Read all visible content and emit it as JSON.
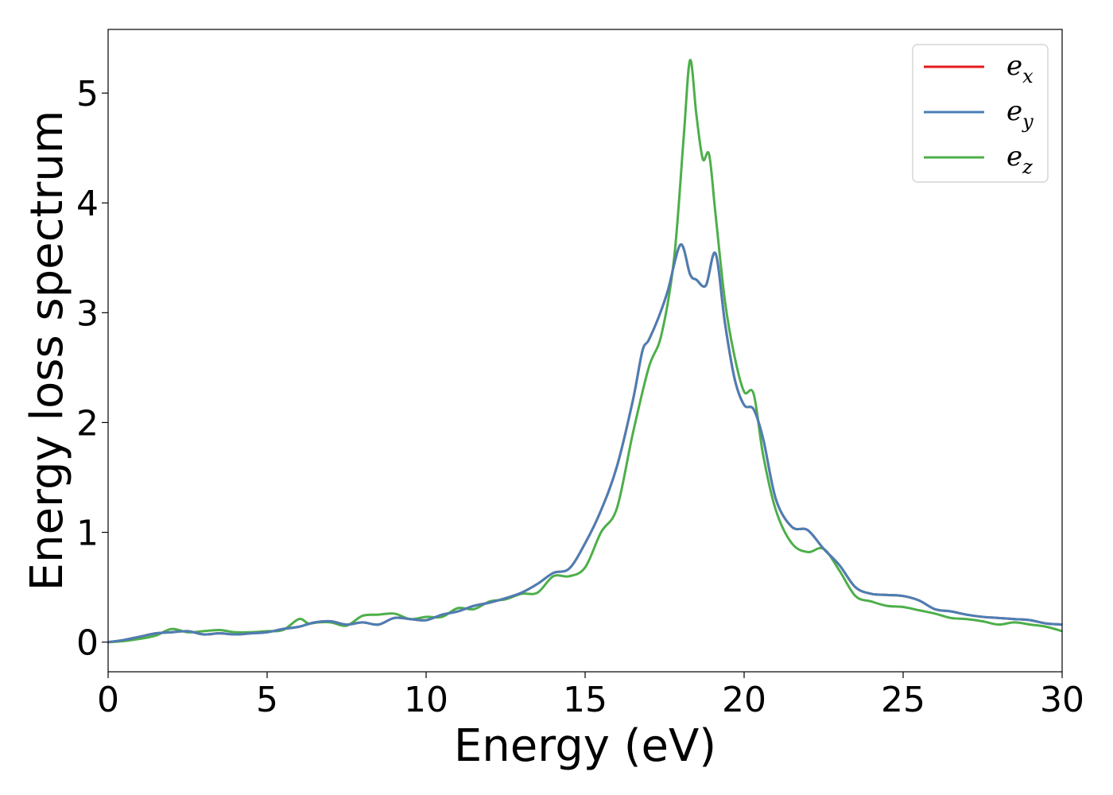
{
  "chart_data": {
    "type": "line",
    "title": "",
    "xlabel": "Energy (eV)",
    "ylabel": "Energy loss spectrum",
    "xlim": [
      0,
      30
    ],
    "ylim": [
      -0.27,
      5.58
    ],
    "xticks": [
      "0",
      "5",
      "10",
      "15",
      "20",
      "25",
      "30"
    ],
    "yticks": [
      "0",
      "1",
      "2",
      "3",
      "4",
      "5"
    ],
    "grid": false,
    "legend_position": "top-right",
    "series": [
      {
        "name_base": "e",
        "name_sub": "x",
        "color": "#e41a1c",
        "x": [
          0,
          0.5,
          1,
          1.5,
          2,
          2.5,
          3,
          3.5,
          4,
          4.5,
          5,
          5.5,
          6,
          6.5,
          7,
          7.5,
          8,
          8.5,
          9,
          9.5,
          10,
          10.5,
          11,
          11.5,
          12,
          12.5,
          13,
          13.5,
          14,
          14.5,
          15,
          15.5,
          16,
          16.5,
          16.8,
          17,
          17.3,
          17.6,
          18,
          18.3,
          18.5,
          18.8,
          19.1,
          19.4,
          19.7,
          20,
          20.3,
          20.6,
          21,
          21.5,
          22,
          22.5,
          23,
          23.5,
          24,
          24.5,
          25,
          25.5,
          26,
          26.5,
          27,
          27.5,
          28,
          28.5,
          29,
          29.5,
          30
        ],
        "y": [
          0,
          0.02,
          0.05,
          0.08,
          0.09,
          0.1,
          0.07,
          0.08,
          0.07,
          0.08,
          0.09,
          0.12,
          0.14,
          0.18,
          0.19,
          0.16,
          0.18,
          0.16,
          0.22,
          0.21,
          0.2,
          0.25,
          0.28,
          0.33,
          0.36,
          0.4,
          0.45,
          0.53,
          0.63,
          0.67,
          0.9,
          1.2,
          1.6,
          2.2,
          2.65,
          2.75,
          2.95,
          3.2,
          3.62,
          3.35,
          3.3,
          3.25,
          3.54,
          2.9,
          2.4,
          2.16,
          2.12,
          1.85,
          1.3,
          1.05,
          1.02,
          0.85,
          0.7,
          0.5,
          0.44,
          0.43,
          0.42,
          0.38,
          0.3,
          0.28,
          0.25,
          0.23,
          0.22,
          0.21,
          0.2,
          0.17,
          0.16
        ]
      },
      {
        "name_base": "e",
        "name_sub": "y",
        "color": "#4a7fb5",
        "x": [
          0,
          0.5,
          1,
          1.5,
          2,
          2.5,
          3,
          3.5,
          4,
          4.5,
          5,
          5.5,
          6,
          6.5,
          7,
          7.5,
          8,
          8.5,
          9,
          9.5,
          10,
          10.5,
          11,
          11.5,
          12,
          12.5,
          13,
          13.5,
          14,
          14.5,
          15,
          15.5,
          16,
          16.5,
          16.8,
          17,
          17.3,
          17.6,
          18,
          18.3,
          18.5,
          18.8,
          19.1,
          19.4,
          19.7,
          20,
          20.3,
          20.6,
          21,
          21.5,
          22,
          22.5,
          23,
          23.5,
          24,
          24.5,
          25,
          25.5,
          26,
          26.5,
          27,
          27.5,
          28,
          28.5,
          29,
          29.5,
          30
        ],
        "y": [
          0,
          0.02,
          0.05,
          0.08,
          0.09,
          0.1,
          0.07,
          0.08,
          0.07,
          0.08,
          0.09,
          0.12,
          0.14,
          0.18,
          0.19,
          0.16,
          0.18,
          0.16,
          0.22,
          0.21,
          0.2,
          0.25,
          0.28,
          0.33,
          0.36,
          0.4,
          0.45,
          0.53,
          0.63,
          0.67,
          0.9,
          1.2,
          1.6,
          2.2,
          2.65,
          2.75,
          2.95,
          3.2,
          3.62,
          3.35,
          3.3,
          3.25,
          3.54,
          2.9,
          2.4,
          2.16,
          2.12,
          1.85,
          1.3,
          1.05,
          1.02,
          0.85,
          0.7,
          0.5,
          0.44,
          0.43,
          0.42,
          0.38,
          0.3,
          0.28,
          0.25,
          0.23,
          0.22,
          0.21,
          0.2,
          0.17,
          0.16
        ]
      },
      {
        "name_base": "e",
        "name_sub": "z",
        "color": "#4daf4a",
        "x": [
          0,
          0.5,
          1,
          1.5,
          2,
          2.5,
          3,
          3.5,
          4,
          4.5,
          5,
          5.5,
          6,
          6.3,
          6.6,
          7,
          7.5,
          8,
          8.5,
          9,
          9.5,
          10,
          10.5,
          11,
          11.5,
          12,
          12.5,
          13,
          13.5,
          14,
          14.5,
          15,
          15.5,
          16,
          16.5,
          17,
          17.4,
          17.8,
          18.1,
          18.3,
          18.5,
          18.7,
          18.9,
          19.1,
          19.4,
          19.7,
          20,
          20.3,
          20.6,
          21,
          21.5,
          22,
          22.5,
          23,
          23.5,
          24,
          24.5,
          25,
          25.5,
          26,
          26.5,
          27,
          27.5,
          28,
          28.5,
          29,
          29.5,
          30
        ],
        "y": [
          0,
          0.01,
          0.03,
          0.06,
          0.12,
          0.09,
          0.1,
          0.11,
          0.09,
          0.09,
          0.1,
          0.11,
          0.21,
          0.17,
          0.18,
          0.18,
          0.15,
          0.24,
          0.25,
          0.26,
          0.21,
          0.23,
          0.23,
          0.31,
          0.3,
          0.37,
          0.39,
          0.44,
          0.45,
          0.6,
          0.6,
          0.68,
          1.0,
          1.22,
          1.9,
          2.5,
          2.8,
          3.5,
          4.6,
          5.3,
          4.8,
          4.4,
          4.44,
          3.9,
          3.1,
          2.6,
          2.28,
          2.26,
          1.7,
          1.2,
          0.9,
          0.82,
          0.85,
          0.65,
          0.42,
          0.37,
          0.33,
          0.32,
          0.29,
          0.26,
          0.22,
          0.21,
          0.19,
          0.16,
          0.18,
          0.16,
          0.14,
          0.1
        ]
      }
    ]
  }
}
